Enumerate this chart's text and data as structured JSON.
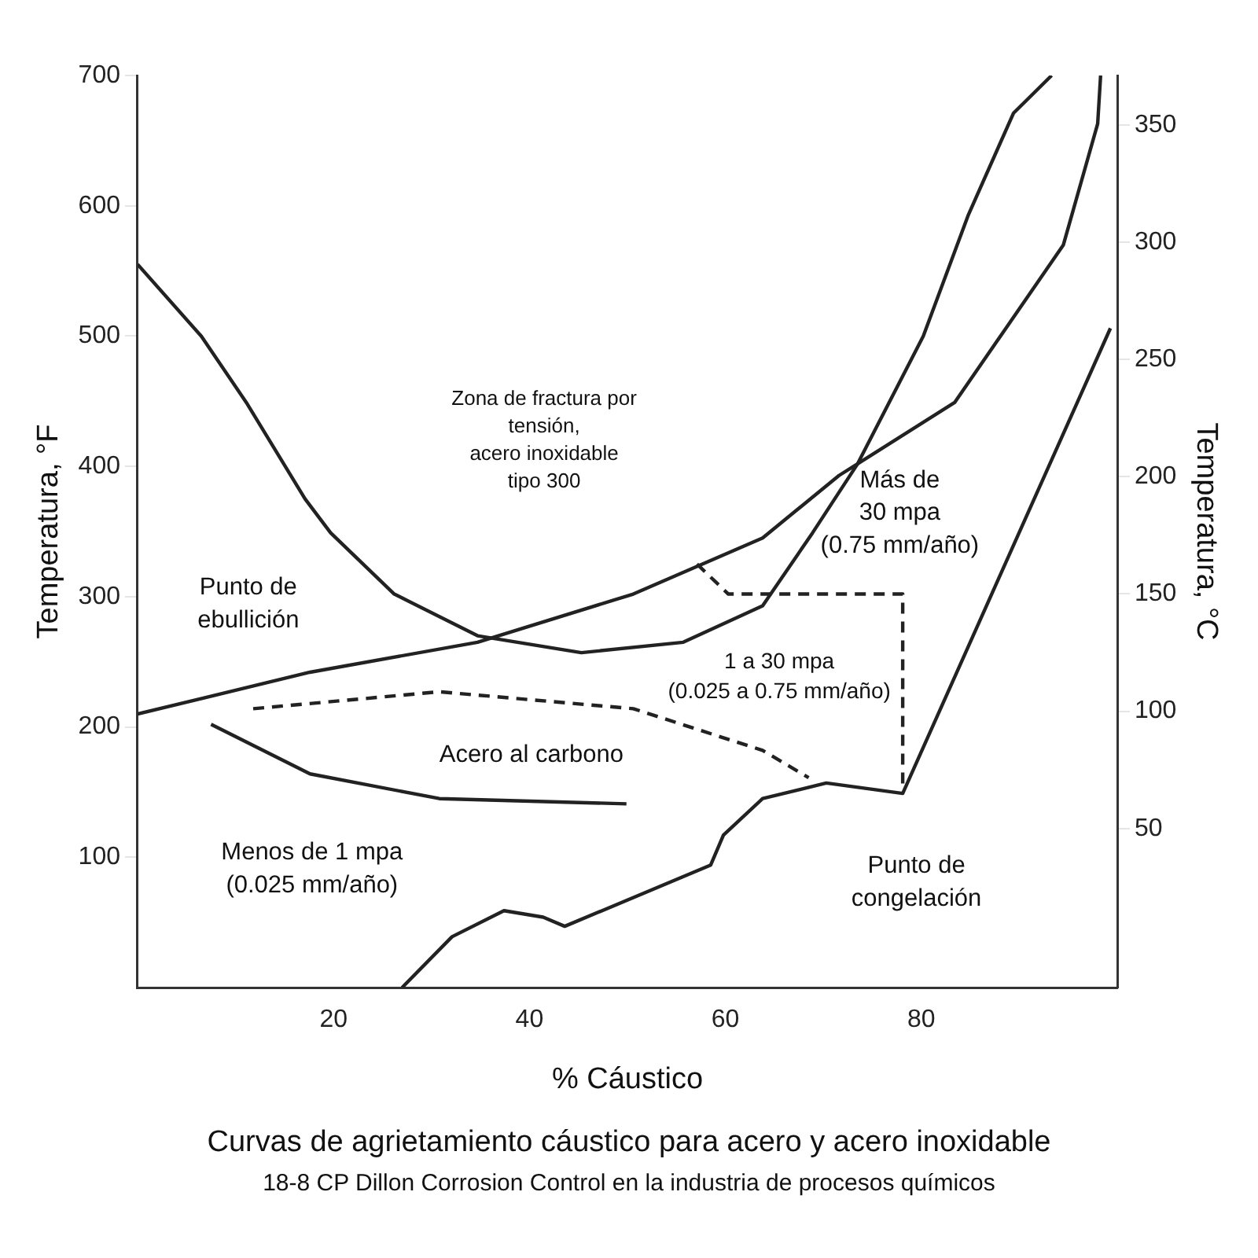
{
  "chart_data": {
    "type": "line",
    "title": "Curvas de agrietamiento cáustico para acero y  acero inoxidable",
    "subtitle": "18-8 CP Dillon Corrosion Control en la industria de procesos químicos",
    "xlabel": "% Cáustico",
    "ylabel": "Temperatura, °F",
    "y2label": "Temperatura, °C",
    "xlim": [
      0,
      100
    ],
    "xticks": [
      20,
      40,
      60,
      80
    ],
    "ylim": [
      0,
      700
    ],
    "yticks": [
      100,
      200,
      300,
      400,
      500,
      600,
      700
    ],
    "y2lim": [
      -17.8,
      371.1
    ],
    "y2ticks": [
      50,
      100,
      150,
      200,
      250,
      300,
      350
    ],
    "grid": false,
    "legend": false,
    "marker": "none",
    "series": [
      {
        "color": "#222222",
        "x": [
          0,
          6.5,
          11.1,
          17.1,
          19.7,
          26.2,
          34.7,
          45.3,
          55.7,
          63.8,
          68.9,
          73.5,
          80.2,
          84.8,
          89.4,
          93.3
        ],
        "values": [
          555,
          500,
          449,
          375,
          349,
          302,
          270,
          257,
          265,
          293,
          349,
          402,
          500,
          593,
          671,
          700
        ]
      },
      {
        "color": "#222222",
        "x": [
          0,
          17.6,
          34.7,
          50.6,
          63.8,
          71.6,
          73.5,
          83.4,
          94.5,
          98,
          98.3
        ],
        "values": [
          210,
          242,
          265,
          302,
          345,
          393,
          402,
          449,
          570,
          663,
          700
        ]
      },
      {
        "color": "#222222",
        "line_style": "dashed",
        "x": [
          57.1,
          60.3,
          78.1,
          78.1
        ],
        "values": [
          325,
          302,
          302,
          152
        ]
      },
      {
        "color": "#222222",
        "line_style": "dashed",
        "x": [
          11.8,
          30.8,
          50.6,
          63.8,
          68.5
        ],
        "values": [
          214,
          227,
          214,
          182,
          161
        ]
      },
      {
        "color": "#222222",
        "x": [
          7.5,
          17.6,
          30.8,
          49.9
        ],
        "values": [
          202,
          164,
          145,
          141
        ]
      },
      {
        "color": "#222222",
        "x": [
          27,
          32.1,
          37.4,
          41.4,
          43.6,
          58.5,
          59.8,
          63.8,
          70.3,
          78.1,
          99.3
        ],
        "values": [
          0,
          39,
          59,
          54,
          47,
          94,
          117,
          145,
          157,
          149,
          506
        ]
      }
    ],
    "annotations": [
      "Zona de fractura por\ntensión,\nacero inoxidable\ntipo 300",
      "Más de\n30 mpa\n(0.75 mm/año)",
      "1 a 30 mpa\n(0.025 a 0.75 mm/año)",
      "Punto de\nebullición",
      "Acero al carbono",
      "Menos de 1 mpa\n(0.025 mm/año)",
      "Punto de\ncongelación"
    ]
  }
}
